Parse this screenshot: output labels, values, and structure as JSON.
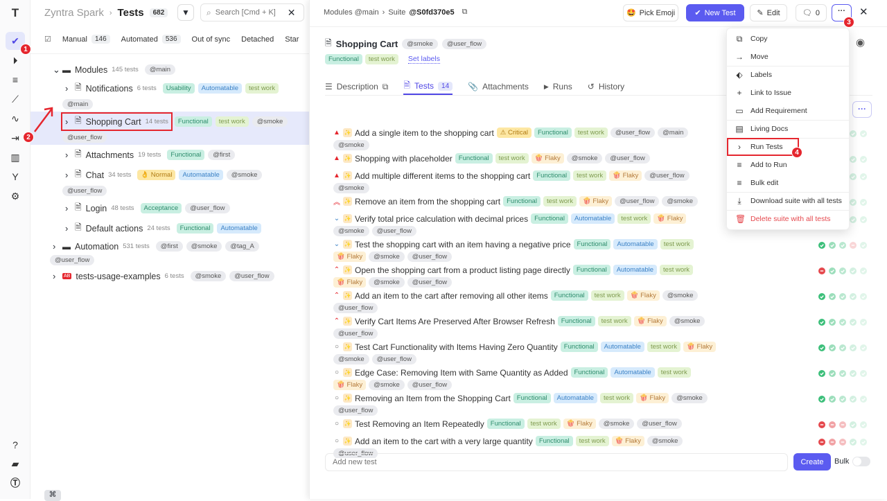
{
  "rail": {
    "items": [
      "check-icon",
      "play-circle-icon",
      "list-check-icon",
      "steps-icon",
      "pulse-icon",
      "import-icon",
      "chart-icon",
      "branch-icon",
      "gear-icon"
    ],
    "bottom": [
      "help-icon",
      "folder-icon",
      "logo-icon"
    ],
    "step1": "1",
    "step2": "2"
  },
  "left": {
    "project": "Zyntra Spark",
    "section": "Tests",
    "total": "682",
    "search_placeholder": "Search [Cmd + K]",
    "filters": [
      {
        "label": "Manual",
        "count": "146"
      },
      {
        "label": "Automated",
        "count": "536"
      },
      {
        "label": "Out of sync",
        "count": ""
      },
      {
        "label": "Detached",
        "count": ""
      },
      {
        "label": "Star",
        "count": ""
      }
    ],
    "tree": [
      {
        "name": "Modules",
        "count": "145 tests",
        "kind": "folder",
        "level": 0,
        "open": true,
        "tags": [
          {
            "text": "@main",
            "type": "tag"
          }
        ]
      },
      {
        "name": "Notifications",
        "count": "6 tests",
        "kind": "suite",
        "level": 1,
        "tags": [
          {
            "text": "Usability",
            "type": "functional"
          },
          {
            "text": "Automatable",
            "type": "automatable"
          },
          {
            "text": "test work",
            "type": "work"
          },
          {
            "text": "@main",
            "type": "tag"
          }
        ]
      },
      {
        "name": "Shopping Cart",
        "count": "14 tests",
        "kind": "suite",
        "level": 1,
        "selected": true,
        "tags": [
          {
            "text": "Functional",
            "type": "functional"
          },
          {
            "text": "test work",
            "type": "work"
          },
          {
            "text": "@smoke",
            "type": "tag"
          },
          {
            "text": "@user_flow",
            "type": "tag"
          }
        ]
      },
      {
        "name": "Attachments",
        "count": "19 tests",
        "kind": "suite",
        "level": 1,
        "tags": [
          {
            "text": "Functional",
            "type": "functional"
          },
          {
            "text": "@first",
            "type": "tag"
          }
        ]
      },
      {
        "name": "Chat",
        "count": "34 tests",
        "kind": "suite",
        "level": 1,
        "tags": [
          {
            "text": "👌 Normal",
            "type": "normal"
          },
          {
            "text": "Automatable",
            "type": "automatable"
          },
          {
            "text": "@smoke",
            "type": "tag"
          },
          {
            "text": "@user_flow",
            "type": "tag"
          }
        ]
      },
      {
        "name": "Login",
        "count": "48 tests",
        "kind": "suite",
        "level": 1,
        "tags": [
          {
            "text": "Acceptance",
            "type": "functional"
          },
          {
            "text": "@user_flow",
            "type": "tag"
          }
        ]
      },
      {
        "name": "Default actions",
        "count": "24 tests",
        "kind": "suite",
        "level": 1,
        "tags": [
          {
            "text": "Functional",
            "type": "functional"
          },
          {
            "text": "Automatable",
            "type": "automatable"
          }
        ]
      },
      {
        "name": "Automation",
        "count": "531 tests",
        "kind": "folder",
        "level": 0,
        "tags": [
          {
            "text": "@first",
            "type": "tag"
          },
          {
            "text": "@smoke",
            "type": "tag"
          },
          {
            "text": "@tag_A",
            "type": "tag"
          },
          {
            "text": "@user_flow",
            "type": "tag"
          }
        ]
      },
      {
        "name": "tests-usage-examples",
        "count": "6 tests",
        "kind": "ab",
        "level": 0,
        "tags": [
          {
            "text": "@smoke",
            "type": "tag"
          },
          {
            "text": "@user_flow",
            "type": "tag"
          }
        ]
      }
    ]
  },
  "right": {
    "breadcrumb": "Modules @main",
    "suite_prefix": "Suite",
    "suite_id": "@S0fd370e5",
    "buttons": {
      "emoji": "Pick Emoji",
      "new_test": "New Test",
      "edit": "Edit",
      "comments": "0",
      "step3": "3"
    },
    "title": "Shopping Cart",
    "title_tags": [
      "@smoke",
      "@user_flow"
    ],
    "labels": [
      "Functional",
      "test work"
    ],
    "set_labels": "Set labels",
    "tabs": [
      {
        "label": "Description"
      },
      {
        "label": "Tests",
        "count": "14"
      },
      {
        "label": "Attachments"
      },
      {
        "label": "Runs"
      },
      {
        "label": "History"
      }
    ],
    "tests": [
      {
        "title": "Add a single item to the shopping cart",
        "priority": "critical",
        "tags": [
          {
            "text": "⚠ Critical",
            "type": "critical"
          },
          {
            "text": "Functional",
            "type": "functional"
          },
          {
            "text": "test work",
            "type": "work"
          },
          {
            "text": "@user_flow",
            "type": "tag"
          },
          {
            "text": "@main",
            "type": "tag"
          },
          {
            "text": "@smoke",
            "type": "tag"
          }
        ],
        "runs": [
          "pass",
          "pass",
          "pass",
          "pass",
          "pass"
        ]
      },
      {
        "title": "Shopping with placeholder",
        "priority": "critical",
        "tags": [
          {
            "text": "Functional",
            "type": "functional"
          },
          {
            "text": "test work",
            "type": "work"
          },
          {
            "text": "🍿 Flaky",
            "type": "flaky"
          },
          {
            "text": "@smoke",
            "type": "tag"
          },
          {
            "text": "@user_flow",
            "type": "tag"
          }
        ],
        "runs": [
          "pass",
          "pass",
          "pass",
          "pass",
          "pass"
        ]
      },
      {
        "title": "Add multiple different items to the shopping cart",
        "priority": "critical",
        "tags": [
          {
            "text": "Functional",
            "type": "functional"
          },
          {
            "text": "test work",
            "type": "work"
          },
          {
            "text": "🍿 Flaky",
            "type": "flaky"
          },
          {
            "text": "@user_flow",
            "type": "tag"
          },
          {
            "text": "@smoke",
            "type": "tag"
          }
        ],
        "runs": [
          "pass",
          "pass",
          "pass",
          "pass",
          "pass"
        ]
      },
      {
        "title": "Remove an item from the shopping cart",
        "priority": "high",
        "tags": [
          {
            "text": "Functional",
            "type": "functional"
          },
          {
            "text": "test work",
            "type": "work"
          },
          {
            "text": "🍿 Flaky",
            "type": "flaky"
          },
          {
            "text": "@user_flow",
            "type": "tag"
          },
          {
            "text": "@smoke",
            "type": "tag"
          }
        ],
        "runs": [
          "pass",
          "pass",
          "pass",
          "pass",
          "pass"
        ]
      },
      {
        "title": "Verify total price calculation with decimal prices",
        "priority": "low",
        "tags": [
          {
            "text": "Functional",
            "type": "functional"
          },
          {
            "text": "Automatable",
            "type": "automatable"
          },
          {
            "text": "test work",
            "type": "work"
          },
          {
            "text": "🍿 Flaky",
            "type": "flaky"
          },
          {
            "text": "@smoke",
            "type": "tag"
          },
          {
            "text": "@user_flow",
            "type": "tag"
          }
        ],
        "runs": [
          "pass",
          "pass",
          "pass",
          "pass",
          "pass"
        ]
      },
      {
        "title": "Test the shopping cart with an item having a negative price",
        "priority": "low",
        "tags": [
          {
            "text": "Functional",
            "type": "functional"
          },
          {
            "text": "Automatable",
            "type": "automatable"
          },
          {
            "text": "test work",
            "type": "work"
          },
          {
            "text": "🍿 Flaky",
            "type": "flaky"
          },
          {
            "text": "@smoke",
            "type": "tag"
          },
          {
            "text": "@user_flow",
            "type": "tag"
          }
        ],
        "runs": [
          "pass",
          "pass",
          "pass",
          "fail",
          "pass"
        ]
      },
      {
        "title": "Open the shopping cart from a product listing page directly",
        "priority": "medium",
        "tags": [
          {
            "text": "Functional",
            "type": "functional"
          },
          {
            "text": "Automatable",
            "type": "automatable"
          },
          {
            "text": "test work",
            "type": "work"
          },
          {
            "text": "🍿 Flaky",
            "type": "flaky"
          },
          {
            "text": "@smoke",
            "type": "tag"
          },
          {
            "text": "@user_flow",
            "type": "tag"
          }
        ],
        "runs": [
          "fail",
          "pass",
          "pass",
          "pass",
          "pass"
        ]
      },
      {
        "title": "Add an item to the cart after removing all other items",
        "priority": "medium",
        "tags": [
          {
            "text": "Functional",
            "type": "functional"
          },
          {
            "text": "test work",
            "type": "work"
          },
          {
            "text": "🍿 Flaky",
            "type": "flaky"
          },
          {
            "text": "@smoke",
            "type": "tag"
          },
          {
            "text": "@user_flow",
            "type": "tag"
          }
        ],
        "runs": [
          "pass",
          "pass",
          "pass",
          "pass",
          "pass"
        ]
      },
      {
        "title": "Verify Cart Items Are Preserved After Browser Refresh",
        "priority": "medium",
        "tags": [
          {
            "text": "Functional",
            "type": "functional"
          },
          {
            "text": "test work",
            "type": "work"
          },
          {
            "text": "🍿 Flaky",
            "type": "flaky"
          },
          {
            "text": "@smoke",
            "type": "tag"
          },
          {
            "text": "@user_flow",
            "type": "tag"
          }
        ],
        "runs": [
          "pass",
          "pass",
          "pass",
          "pass",
          "pass"
        ]
      },
      {
        "title": "Test Cart Functionality with Items Having Zero Quantity",
        "priority": "none",
        "tags": [
          {
            "text": "Functional",
            "type": "functional"
          },
          {
            "text": "Automatable",
            "type": "automatable"
          },
          {
            "text": "test work",
            "type": "work"
          },
          {
            "text": "🍿 Flaky",
            "type": "flaky"
          },
          {
            "text": "@smoke",
            "type": "tag"
          },
          {
            "text": "@user_flow",
            "type": "tag"
          }
        ],
        "runs": [
          "pass",
          "pass",
          "pass",
          "pass",
          "pass"
        ]
      },
      {
        "title": "Edge Case: Removing Item with Same Quantity as Added",
        "priority": "none",
        "tags": [
          {
            "text": "Functional",
            "type": "functional"
          },
          {
            "text": "Automatable",
            "type": "automatable"
          },
          {
            "text": "test work",
            "type": "work"
          },
          {
            "text": "🍿 Flaky",
            "type": "flaky"
          },
          {
            "text": "@smoke",
            "type": "tag"
          },
          {
            "text": "@user_flow",
            "type": "tag"
          }
        ],
        "runs": [
          "pass",
          "pass",
          "pass",
          "pass",
          "pass"
        ]
      },
      {
        "title": "Removing an Item from the Shopping Cart",
        "priority": "none",
        "tags": [
          {
            "text": "Functional",
            "type": "functional"
          },
          {
            "text": "Automatable",
            "type": "automatable"
          },
          {
            "text": "test work",
            "type": "work"
          },
          {
            "text": "🍿 Flaky",
            "type": "flaky"
          },
          {
            "text": "@smoke",
            "type": "tag"
          },
          {
            "text": "@user_flow",
            "type": "tag"
          }
        ],
        "runs": [
          "pass",
          "pass",
          "pass",
          "pass",
          "pass"
        ]
      },
      {
        "title": "Test Removing an Item Repeatedly",
        "priority": "none",
        "tags": [
          {
            "text": "Functional",
            "type": "functional"
          },
          {
            "text": "test work",
            "type": "work"
          },
          {
            "text": "🍿 Flaky",
            "type": "flaky"
          },
          {
            "text": "@smoke",
            "type": "tag"
          },
          {
            "text": "@user_flow",
            "type": "tag"
          }
        ],
        "runs": [
          "fail",
          "fail",
          "fail",
          "pass",
          "pass"
        ]
      },
      {
        "title": "Add an item to the cart with a very large quantity",
        "priority": "none",
        "tags": [
          {
            "text": "Functional",
            "type": "functional"
          },
          {
            "text": "test work",
            "type": "work"
          },
          {
            "text": "🍿 Flaky",
            "type": "flaky"
          },
          {
            "text": "@smoke",
            "type": "tag"
          },
          {
            "text": "@user_flow",
            "type": "tag"
          }
        ],
        "runs": [
          "fail",
          "fail",
          "fail",
          "pass",
          "pass"
        ]
      }
    ],
    "add_placeholder": "Add new test",
    "create": "Create",
    "bulk": "Bulk",
    "bulk_on": false
  },
  "menu": {
    "step4": "4",
    "items": [
      {
        "label": "Copy",
        "icon": "copy-icon",
        "glyph": "⧉"
      },
      {
        "label": "Move",
        "icon": "arrow-right-icon",
        "glyph": "→",
        "sep_after": true
      },
      {
        "label": "Labels",
        "icon": "tag-icon",
        "glyph": "⬖"
      },
      {
        "label": "Link to Issue",
        "icon": "plus-icon",
        "glyph": "+"
      },
      {
        "label": "Add Requirement",
        "icon": "briefcase-icon",
        "glyph": "▭",
        "sep_after": true
      },
      {
        "label": "Living Docs",
        "icon": "book-icon",
        "glyph": "▤",
        "sep_after": true
      },
      {
        "label": "Run Tests",
        "icon": "chevron-right-icon",
        "glyph": "›",
        "highlight": true
      },
      {
        "label": "Add to Run",
        "icon": "list-plus-icon",
        "glyph": "≡"
      },
      {
        "label": "Bulk edit",
        "icon": "list-edit-icon",
        "glyph": "≡",
        "sep_after": true
      },
      {
        "label": "Download suite with all tests",
        "icon": "download-icon",
        "glyph": "⤓",
        "sep_after": true
      },
      {
        "label": "Delete suite with all tests",
        "icon": "trash-icon",
        "glyph": "🗑",
        "danger": true
      }
    ]
  },
  "colors": {
    "accent": "#5b5bf0",
    "danger": "#e5262e",
    "pass": "#3cbf7a",
    "fail": "#e5484d"
  }
}
